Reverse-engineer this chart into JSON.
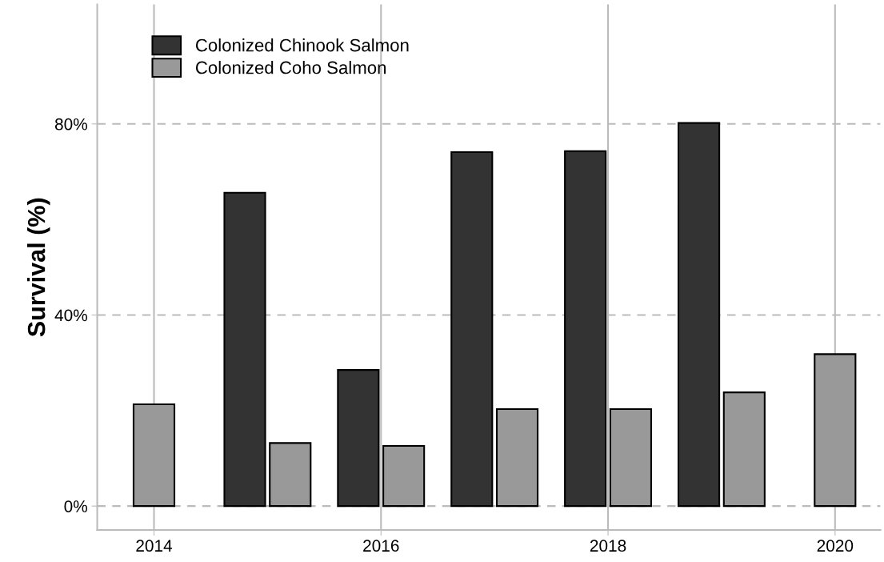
{
  "chart_data": {
    "type": "bar",
    "ylabel": "Survival (%)",
    "x": [
      2014,
      2015,
      2016,
      2017,
      2018,
      2019,
      2020
    ],
    "series": [
      {
        "name": "Colonized Chinook Salmon",
        "color": "#333333",
        "values": [
          null,
          65.6,
          28.5,
          74.1,
          74.3,
          80.2,
          null
        ]
      },
      {
        "name": "Colonized Coho Salmon",
        "color": "#999999",
        "values": [
          21.3,
          13.2,
          12.6,
          20.3,
          20.3,
          23.8,
          31.8
        ]
      }
    ],
    "xlim": [
      2013.5,
      2020.4
    ],
    "xticks": [
      2014,
      2016,
      2018,
      2020
    ],
    "ylim": [
      -5,
      105
    ],
    "yticks": [
      {
        "value": 0,
        "label": "0%"
      },
      {
        "value": 40,
        "label": "40%"
      },
      {
        "value": 80,
        "label": "80%"
      }
    ],
    "grid": true,
    "legend": "top left"
  }
}
